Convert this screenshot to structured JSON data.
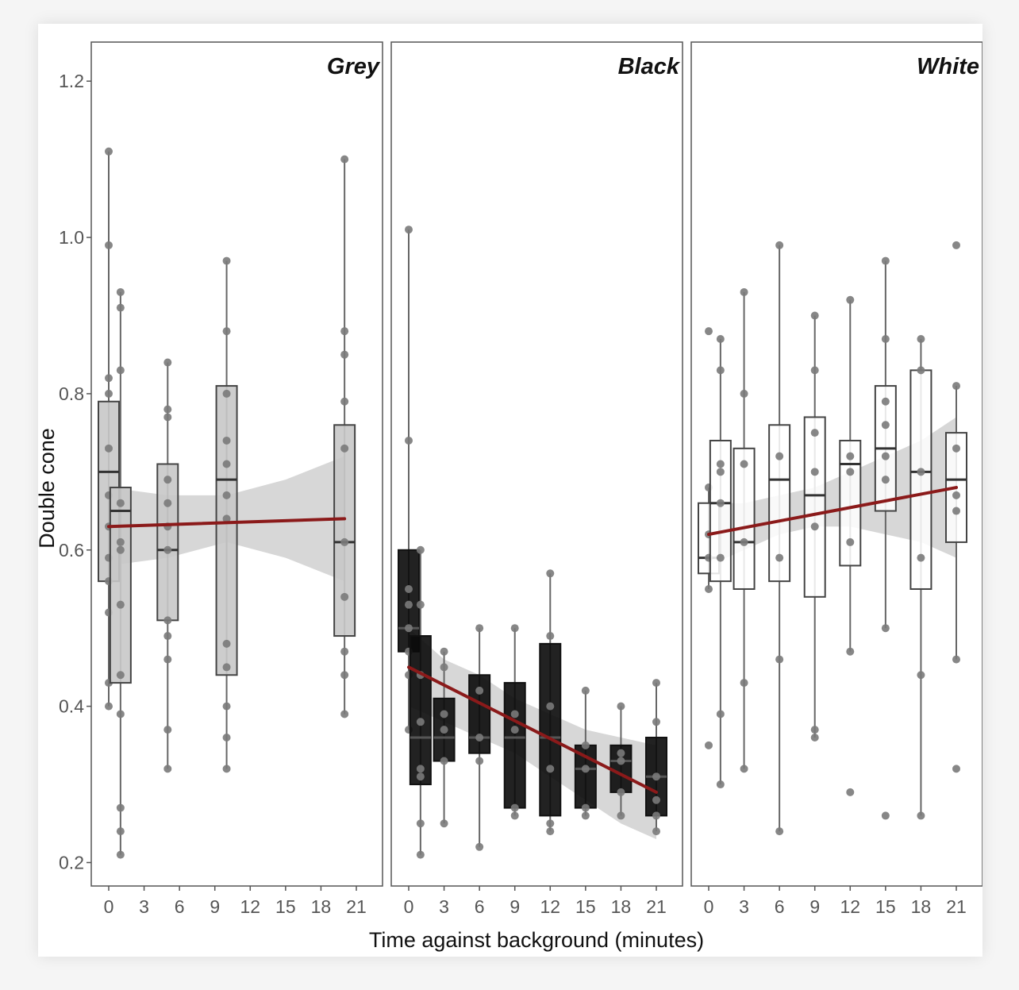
{
  "chart_data": {
    "type": "box",
    "ylabel": "Double cone",
    "xlabel": "Time against background (minutes)",
    "ylim": [
      0.17,
      1.25
    ],
    "yticks": [
      0.2,
      0.4,
      0.6,
      0.8,
      1.0,
      1.2
    ],
    "ytick_labels": [
      "0.2",
      "0.4",
      "0.6",
      "0.8",
      "1.0",
      "1.2"
    ],
    "xlim": [
      -1.5,
      22.5
    ],
    "xticks": [
      0,
      3,
      6,
      9,
      12,
      15,
      18,
      21
    ],
    "xtick_labels": [
      "0",
      "3",
      "6",
      "9",
      "12",
      "15",
      "18",
      "21"
    ],
    "grid": false,
    "colors": {
      "trend": "#8b1a1a",
      "band": "#bdbdbd",
      "point": "#7a7a7a",
      "frame": "#555555"
    },
    "panels": [
      {
        "name": "Grey",
        "box_fill": "#c8c8c8",
        "boxes": [
          {
            "x": 0,
            "min": 0.4,
            "q1": 0.56,
            "median": 0.7,
            "q3": 0.79,
            "max": 1.11,
            "points": [
              0.4,
              0.43,
              0.52,
              0.56,
              0.59,
              0.63,
              0.67,
              0.73,
              0.8,
              0.82,
              0.99,
              1.11
            ]
          },
          {
            "x": 1,
            "min": 0.21,
            "q1": 0.43,
            "median": 0.65,
            "q3": 0.68,
            "max": 0.93,
            "points": [
              0.21,
              0.24,
              0.27,
              0.39,
              0.44,
              0.53,
              0.6,
              0.61,
              0.66,
              0.83,
              0.91,
              0.93
            ]
          },
          {
            "x": 5,
            "min": 0.32,
            "q1": 0.51,
            "median": 0.6,
            "q3": 0.71,
            "max": 0.84,
            "points": [
              0.32,
              0.37,
              0.46,
              0.49,
              0.51,
              0.6,
              0.63,
              0.66,
              0.69,
              0.77,
              0.78,
              0.84
            ]
          },
          {
            "x": 10,
            "min": 0.32,
            "q1": 0.44,
            "median": 0.69,
            "q3": 0.81,
            "max": 0.97,
            "points": [
              0.32,
              0.36,
              0.4,
              0.45,
              0.48,
              0.64,
              0.67,
              0.71,
              0.74,
              0.8,
              0.88,
              0.97
            ]
          },
          {
            "x": 20,
            "min": 0.39,
            "q1": 0.49,
            "median": 0.61,
            "q3": 0.76,
            "max": 1.1,
            "points": [
              0.39,
              0.44,
              0.47,
              0.54,
              0.61,
              0.73,
              0.79,
              0.85,
              0.88,
              1.1
            ]
          }
        ],
        "trend": {
          "x": [
            0,
            20
          ],
          "y": [
            0.63,
            0.64
          ]
        },
        "band": {
          "x": [
            0,
            5,
            10,
            15,
            20
          ],
          "upper": [
            0.68,
            0.67,
            0.67,
            0.69,
            0.72
          ],
          "lower": [
            0.58,
            0.59,
            0.61,
            0.59,
            0.56
          ]
        }
      },
      {
        "name": "Black",
        "box_fill": "#0a0a0a",
        "boxes": [
          {
            "x": 0,
            "min": 0.37,
            "q1": 0.47,
            "median": 0.5,
            "q3": 0.6,
            "max": 1.01,
            "points": [
              0.37,
              0.44,
              0.47,
              0.5,
              0.53,
              0.55,
              0.74,
              1.01
            ]
          },
          {
            "x": 1,
            "min": 0.21,
            "q1": 0.3,
            "median": 0.36,
            "q3": 0.49,
            "max": 0.6,
            "points": [
              0.21,
              0.25,
              0.31,
              0.32,
              0.38,
              0.44,
              0.53,
              0.6
            ]
          },
          {
            "x": 3,
            "min": 0.25,
            "q1": 0.33,
            "median": 0.36,
            "q3": 0.41,
            "max": 0.47,
            "points": [
              0.25,
              0.33,
              0.37,
              0.39,
              0.45,
              0.47
            ]
          },
          {
            "x": 6,
            "min": 0.22,
            "q1": 0.34,
            "median": 0.36,
            "q3": 0.44,
            "max": 0.5,
            "points": [
              0.22,
              0.33,
              0.36,
              0.42,
              0.5
            ]
          },
          {
            "x": 9,
            "min": 0.26,
            "q1": 0.27,
            "median": 0.36,
            "q3": 0.43,
            "max": 0.5,
            "points": [
              0.26,
              0.27,
              0.37,
              0.39,
              0.5
            ]
          },
          {
            "x": 12,
            "min": 0.24,
            "q1": 0.26,
            "median": 0.36,
            "q3": 0.48,
            "max": 0.57,
            "points": [
              0.24,
              0.25,
              0.32,
              0.4,
              0.49,
              0.57
            ]
          },
          {
            "x": 15,
            "min": 0.26,
            "q1": 0.27,
            "median": 0.32,
            "q3": 0.35,
            "max": 0.42,
            "points": [
              0.26,
              0.27,
              0.32,
              0.35,
              0.42
            ]
          },
          {
            "x": 18,
            "min": 0.26,
            "q1": 0.29,
            "median": 0.33,
            "q3": 0.35,
            "max": 0.4,
            "points": [
              0.26,
              0.29,
              0.33,
              0.34,
              0.4
            ]
          },
          {
            "x": 21,
            "min": 0.24,
            "q1": 0.26,
            "median": 0.31,
            "q3": 0.36,
            "max": 0.43,
            "points": [
              0.24,
              0.26,
              0.28,
              0.31,
              0.38,
              0.43
            ]
          }
        ],
        "trend": {
          "x": [
            0,
            21
          ],
          "y": [
            0.45,
            0.29
          ]
        },
        "band": {
          "x": [
            0,
            3,
            6,
            9,
            12,
            15,
            18,
            21
          ],
          "upper": [
            0.5,
            0.46,
            0.44,
            0.41,
            0.39,
            0.37,
            0.36,
            0.35
          ],
          "lower": [
            0.4,
            0.38,
            0.36,
            0.34,
            0.31,
            0.28,
            0.25,
            0.23
          ]
        }
      },
      {
        "name": "White",
        "box_fill": "#ffffff",
        "boxes": [
          {
            "x": 0,
            "min": 0.55,
            "q1": 0.57,
            "median": 0.59,
            "q3": 0.66,
            "max": 0.68,
            "points": [
              0.35,
              0.55,
              0.59,
              0.62,
              0.68,
              0.88
            ]
          },
          {
            "x": 1,
            "min": 0.3,
            "q1": 0.56,
            "median": 0.66,
            "q3": 0.74,
            "max": 0.87,
            "points": [
              0.3,
              0.39,
              0.59,
              0.66,
              0.7,
              0.71,
              0.83,
              0.87
            ]
          },
          {
            "x": 3,
            "min": 0.32,
            "q1": 0.55,
            "median": 0.61,
            "q3": 0.73,
            "max": 0.93,
            "points": [
              0.32,
              0.43,
              0.61,
              0.71,
              0.8,
              0.93
            ]
          },
          {
            "x": 6,
            "min": 0.24,
            "q1": 0.56,
            "median": 0.69,
            "q3": 0.76,
            "max": 0.99,
            "points": [
              0.24,
              0.46,
              0.59,
              0.72,
              0.99
            ]
          },
          {
            "x": 9,
            "min": 0.36,
            "q1": 0.54,
            "median": 0.67,
            "q3": 0.77,
            "max": 0.9,
            "points": [
              0.36,
              0.37,
              0.63,
              0.7,
              0.75,
              0.83,
              0.9
            ]
          },
          {
            "x": 12,
            "min": 0.47,
            "q1": 0.58,
            "median": 0.71,
            "q3": 0.74,
            "max": 0.92,
            "points": [
              0.29,
              0.47,
              0.61,
              0.7,
              0.72,
              0.92
            ]
          },
          {
            "x": 15,
            "min": 0.5,
            "q1": 0.65,
            "median": 0.73,
            "q3": 0.81,
            "max": 0.97,
            "points": [
              0.26,
              0.5,
              0.69,
              0.72,
              0.76,
              0.79,
              0.87,
              0.97
            ]
          },
          {
            "x": 18,
            "min": 0.26,
            "q1": 0.55,
            "median": 0.7,
            "q3": 0.83,
            "max": 0.87,
            "points": [
              0.26,
              0.44,
              0.59,
              0.7,
              0.83,
              0.87
            ]
          },
          {
            "x": 21,
            "min": 0.46,
            "q1": 0.61,
            "median": 0.69,
            "q3": 0.75,
            "max": 0.81,
            "points": [
              0.32,
              0.46,
              0.65,
              0.67,
              0.73,
              0.81,
              0.99
            ]
          }
        ],
        "trend": {
          "x": [
            0,
            21
          ],
          "y": [
            0.62,
            0.68
          ]
        },
        "band": {
          "x": [
            0,
            3,
            6,
            9,
            12,
            15,
            18,
            21
          ],
          "upper": [
            0.66,
            0.66,
            0.67,
            0.68,
            0.7,
            0.72,
            0.74,
            0.77
          ],
          "lower": [
            0.58,
            0.6,
            0.62,
            0.63,
            0.63,
            0.62,
            0.61,
            0.59
          ]
        }
      }
    ]
  }
}
